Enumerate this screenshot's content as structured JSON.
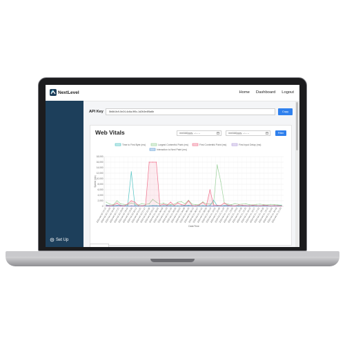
{
  "nav": {
    "brand": "NextLevel",
    "links": [
      "Home",
      "Dashboard",
      "Logout"
    ]
  },
  "sidebar": {
    "setup_label": "Set Up"
  },
  "api": {
    "label": "API Key",
    "value": "5b6b1fc9-0e24-4c6a-9f0c-1d2b3e4f5a6b",
    "copy_label": "Copy"
  },
  "vitals": {
    "title": "Web Vitals",
    "date_placeholder": "mm/dd/yyyy, --:-- --",
    "filter_label": "Filter"
  },
  "colors": {
    "sidebar": "#1d3f5b",
    "accent": "#2f80ed"
  },
  "chart_data": {
    "type": "line",
    "legend": [
      "Time to First Byte (ms)",
      "Largest Contentful Paint (ms)",
      "First Contentful Paint (ms)",
      "First Input Delay (ms)",
      "Interaction to Next Paint (ms)"
    ],
    "legend_placement": "top-center",
    "series": [
      {
        "name": "Time to First Byte (ms)",
        "color": "#4fc3c3",
        "values": [
          500,
          300,
          200,
          350,
          400,
          250,
          300,
          12500,
          300,
          200,
          250,
          150,
          200,
          300,
          250,
          200,
          150,
          300,
          250,
          200,
          150,
          200,
          300,
          350,
          250,
          200,
          150,
          250,
          200,
          300,
          2200,
          250,
          200,
          300,
          400,
          250,
          200,
          150,
          200,
          300,
          250,
          200,
          150,
          250,
          200,
          300,
          150,
          200,
          250,
          300
        ]
      },
      {
        "name": "Largest Contentful Paint (ms)",
        "color": "#9ad19a",
        "values": [
          1500,
          800,
          600,
          2000,
          900,
          700,
          600,
          1200,
          800,
          500,
          1000,
          700,
          900,
          2500,
          1500,
          800,
          1200,
          700,
          600,
          800,
          1500,
          1700,
          900,
          2200,
          800,
          600,
          700,
          1600,
          900,
          800,
          1000,
          15000,
          9000,
          1200,
          800,
          600,
          1000,
          700,
          800,
          900,
          600,
          500,
          700,
          800,
          600,
          500,
          700,
          600,
          500,
          400
        ]
      },
      {
        "name": "First Contentful Paint (ms)",
        "color": "#ef6f8a",
        "values": [
          300,
          200,
          400,
          1200,
          300,
          200,
          900,
          2000,
          1500,
          300,
          200,
          500,
          16000,
          16000,
          16000,
          300,
          800,
          400,
          1500,
          300,
          1200,
          600,
          400,
          2000,
          300,
          200,
          500,
          1400,
          300,
          6000,
          500,
          400,
          300,
          1200,
          400,
          300,
          200,
          500,
          400,
          300,
          200,
          400,
          300,
          200,
          400,
          300,
          200,
          300,
          200,
          100
        ]
      },
      {
        "name": "First Input Delay (ms)",
        "color": "#b39ddb",
        "values": [
          50,
          40,
          30,
          60,
          40,
          30,
          50,
          40,
          30,
          40,
          50,
          30,
          40,
          30,
          50,
          40,
          30,
          40,
          50,
          30,
          40,
          30,
          50,
          40,
          30,
          40,
          30,
          50,
          40,
          30,
          40,
          50,
          30,
          40,
          30,
          50,
          40,
          30,
          40,
          50,
          30,
          40,
          30,
          50,
          40,
          30,
          40,
          50,
          30,
          40
        ]
      },
      {
        "name": "Interaction to Next Paint (ms)",
        "color": "#5b9bd5",
        "values": [
          200,
          150,
          100,
          300,
          200,
          150,
          100,
          200,
          150,
          100,
          200,
          150,
          100,
          200,
          150,
          100,
          250,
          200,
          150,
          100,
          200,
          150,
          100,
          200,
          150,
          100,
          200,
          150,
          100,
          200,
          150,
          100,
          200,
          150,
          100,
          200,
          150,
          100,
          200,
          150,
          100,
          200,
          150,
          100,
          200,
          150,
          100,
          200,
          150,
          100
        ]
      }
    ],
    "ylabel": "Speed (ms)",
    "xlabel": "Date/Time",
    "ylim": [
      0,
      18000
    ],
    "yticks": [
      "0",
      "2,000",
      "4,000",
      "6,000",
      "8,000",
      "10,000",
      "12,000",
      "14,000",
      "16,000",
      "18,000"
    ],
    "xticks": [
      "2024-04-20 14:15",
      "2024-04-20 15:02",
      "2024-04-20 16:40",
      "2024-04-20 17:21",
      "2024-04-20 18:05",
      "2024-04-20 18:44",
      "2024-04-20 19:30",
      "2024-04-20 20:12",
      "2024-04-20 21:01",
      "2024-04-20 21:47",
      "2024-04-20 22:30",
      "2024-04-20 23:15",
      "2024-04-21 00:02",
      "2024-04-21 00:48",
      "2024-04-21 01:33",
      "2024-04-21 02:20",
      "2024-04-21 03:05",
      "2024-04-21 03:52",
      "2024-04-21 04:38",
      "2024-04-21 05:25",
      "2024-04-21 06:10",
      "2024-04-21 06:57",
      "2024-04-21 07:42",
      "2024-04-21 08:30",
      "2024-04-21 09:15",
      "2024-04-21 10:02",
      "2024-04-21 10:48",
      "2024-04-21 11:33",
      "2024-04-21 12:20",
      "2024-04-21 13:05",
      "2024-04-21 13:52",
      "2024-04-21 14:38",
      "2024-04-21 15:25",
      "2024-04-21 16:10",
      "2024-04-21 16:57",
      "2024-04-21 17:42",
      "2024-04-21 18:30",
      "2024-04-21 19:15",
      "2024-04-21 20:02",
      "2024-04-21 20:48",
      "2024-04-21 21:33"
    ],
    "grid": true
  }
}
